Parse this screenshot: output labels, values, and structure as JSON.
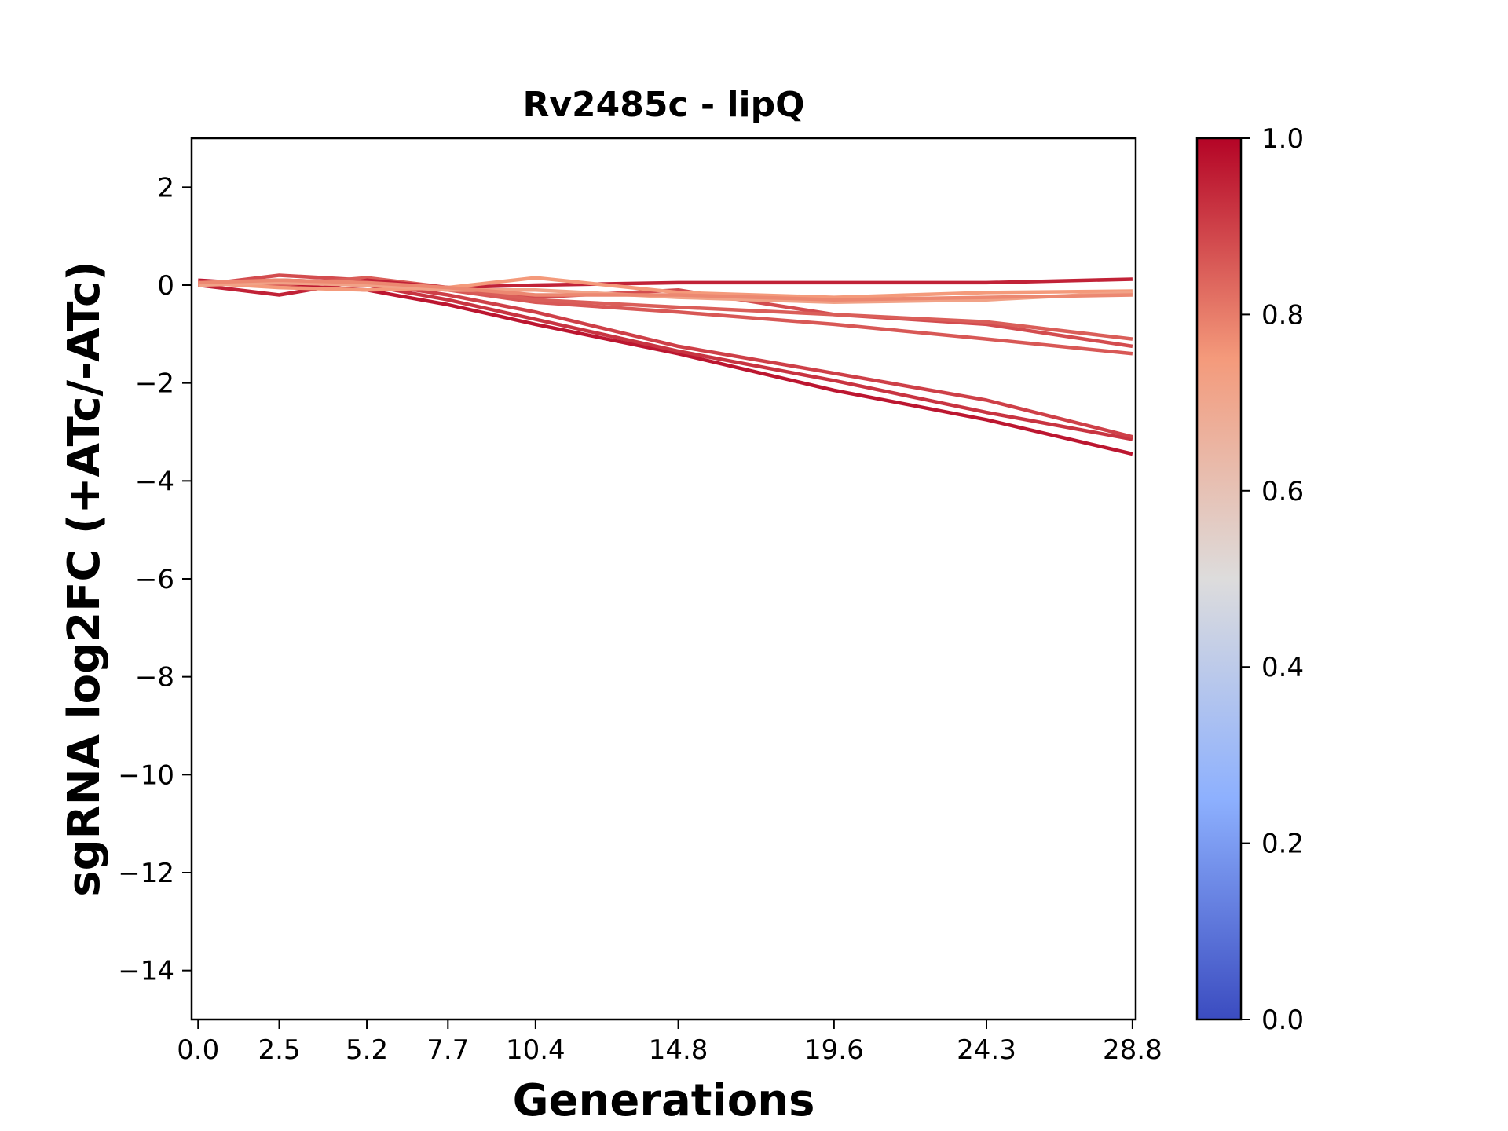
{
  "chart_data": {
    "type": "line",
    "title": "Rv2485c - lipQ",
    "xlabel": "Generations",
    "ylabel": "sgRNA log2FC (+ATc/-ATc)",
    "x": [
      0.0,
      2.5,
      5.2,
      7.7,
      10.4,
      14.8,
      19.6,
      24.3,
      28.8
    ],
    "x_tick_labels": [
      "0.0",
      "2.5",
      "5.2",
      "7.7",
      "10.4",
      "14.8",
      "19.6",
      "24.3",
      "28.8"
    ],
    "xlim": [
      -0.2,
      28.9
    ],
    "ylim": [
      -15,
      3
    ],
    "y_ticks": [
      2,
      0,
      -2,
      -4,
      -6,
      -8,
      -10,
      -12,
      -14
    ],
    "y_tick_labels": [
      "2",
      "0",
      "−2",
      "−4",
      "−6",
      "−8",
      "−10",
      "−12",
      "−14"
    ],
    "grid": false,
    "legend": "none",
    "colorbar": {
      "min": 0.0,
      "max": 1.0,
      "ticks": [
        0.0,
        0.2,
        0.4,
        0.6,
        0.8,
        1.0
      ],
      "tick_labels": [
        "0.0",
        "0.2",
        "0.4",
        "0.6",
        "0.8",
        "1.0"
      ],
      "colormap": "coolwarm",
      "stops": [
        {
          "value": 0.0,
          "color": "#3b4cc0"
        },
        {
          "value": 0.25,
          "color": "#8db0fe"
        },
        {
          "value": 0.5,
          "color": "#dddcdc"
        },
        {
          "value": 0.75,
          "color": "#f49a7b"
        },
        {
          "value": 1.0,
          "color": "#b40426"
        }
      ]
    },
    "series": [
      {
        "color_value": 0.97,
        "values": [
          0.1,
          0.0,
          -0.1,
          -0.4,
          -0.8,
          -1.4,
          -2.15,
          -2.75,
          -3.45
        ]
      },
      {
        "color_value": 0.92,
        "values": [
          0.05,
          0.05,
          0.0,
          -0.3,
          -0.7,
          -1.35,
          -1.95,
          -2.6,
          -3.15
        ]
      },
      {
        "color_value": 0.9,
        "values": [
          0.0,
          0.1,
          0.05,
          -0.2,
          -0.55,
          -1.25,
          -1.8,
          -2.35,
          -3.1
        ]
      },
      {
        "color_value": 0.88,
        "values": [
          0.0,
          0.2,
          0.1,
          -0.1,
          -0.25,
          -0.1,
          -0.6,
          -0.8,
          -1.25
        ]
      },
      {
        "color_value": 0.86,
        "values": [
          0.05,
          0.1,
          0.05,
          -0.1,
          -0.35,
          -0.55,
          -0.8,
          -1.1,
          -1.4
        ]
      },
      {
        "color_value": 0.85,
        "values": [
          0.05,
          0.0,
          0.15,
          -0.05,
          -0.3,
          -0.45,
          -0.6,
          -0.75,
          -1.1
        ]
      },
      {
        "color_value": 0.95,
        "values": [
          0.0,
          -0.2,
          0.1,
          -0.05,
          0.0,
          0.05,
          0.05,
          0.05,
          0.12
        ]
      },
      {
        "color_value": 0.75,
        "values": [
          0.05,
          -0.05,
          -0.1,
          -0.05,
          0.15,
          -0.15,
          -0.25,
          -0.15,
          -0.12
        ]
      },
      {
        "color_value": 0.72,
        "values": [
          0.0,
          0.05,
          0.0,
          -0.1,
          -0.1,
          -0.25,
          -0.35,
          -0.3,
          -0.15
        ]
      },
      {
        "color_value": 0.78,
        "values": [
          0.05,
          0.1,
          0.05,
          -0.05,
          -0.2,
          -0.2,
          -0.3,
          -0.25,
          -0.2
        ]
      }
    ]
  }
}
